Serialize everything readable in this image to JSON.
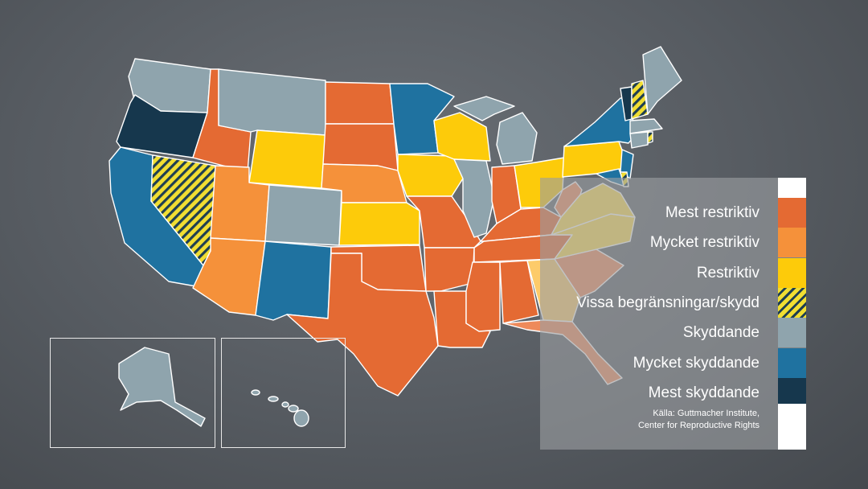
{
  "colors": {
    "mest_restriktiv": "#e46a33",
    "mycket_restriktiv": "#f5913a",
    "restriktiv": "#fdcb0a",
    "vissa": "#f1de32",
    "skyddande": "#8fa4ad",
    "mycket_skyddande": "#1f72a0",
    "mest_skyddande": "#16374d",
    "salmon": "#ee8a5a",
    "light_yellow": "#fcd94c"
  },
  "legend": {
    "items": [
      {
        "label": "Mest restriktiv",
        "color": "#e46a33",
        "hatched": false
      },
      {
        "label": "Mycket restriktiv",
        "color": "#f5913a",
        "hatched": false
      },
      {
        "label": "Restriktiv",
        "color": "#fdcb0a",
        "hatched": false
      },
      {
        "label": "Vissa begränsningar/skydd",
        "color": "#f1de32",
        "hatched": true
      },
      {
        "label": "Skyddande",
        "color": "#8fa4ad",
        "hatched": false
      },
      {
        "label": "Mycket skyddande",
        "color": "#1f72a0",
        "hatched": false
      },
      {
        "label": "Mest skyddande",
        "color": "#16374d",
        "hatched": false
      }
    ],
    "source_line1": "Källa: Guttmacher Institute,",
    "source_line2": "Center for Reproductive Rights"
  }
}
